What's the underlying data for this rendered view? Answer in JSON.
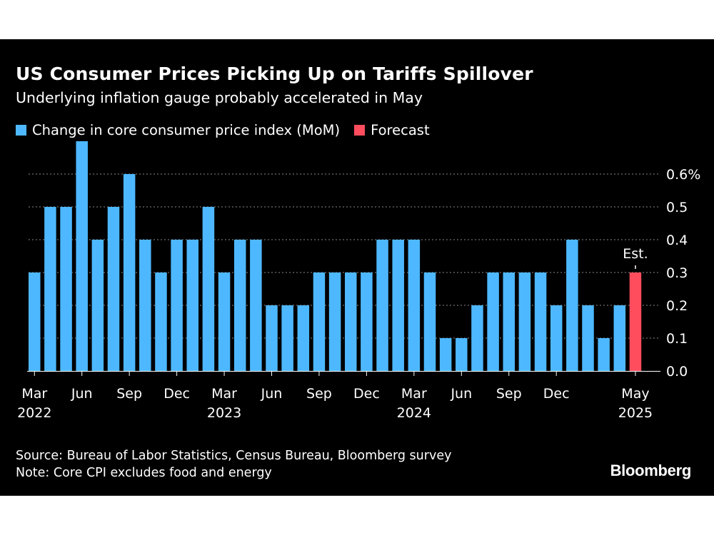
{
  "title": "US Consumer Prices Picking Up on Tariffs Spillover",
  "subtitle": "Underlying inflation gauge probably accelerated in May",
  "legend": [
    {
      "label": "Change in core consumer price index (MoM)",
      "color": "#4db8ff"
    },
    {
      "label": "Forecast",
      "color": "#ff4d5e"
    }
  ],
  "source": "Source: Bureau of Labor Statistics, Census Bureau, Bloomberg survey",
  "note": "Note: Core CPI excludes food and energy",
  "brand": "Bloomberg",
  "chart_data": {
    "type": "bar",
    "categories": [
      "2022-03",
      "2022-04",
      "2022-05",
      "2022-06",
      "2022-07",
      "2022-08",
      "2022-09",
      "2022-10",
      "2022-11",
      "2022-12",
      "2023-01",
      "2023-02",
      "2023-03",
      "2023-04",
      "2023-05",
      "2023-06",
      "2023-07",
      "2023-08",
      "2023-09",
      "2023-10",
      "2023-11",
      "2023-12",
      "2024-01",
      "2024-02",
      "2024-03",
      "2024-04",
      "2024-05",
      "2024-06",
      "2024-07",
      "2024-08",
      "2024-09",
      "2024-10",
      "2024-11",
      "2024-12",
      "2025-01",
      "2025-02",
      "2025-03",
      "2025-04",
      "2025-05"
    ],
    "values": [
      0.3,
      0.5,
      0.5,
      0.7,
      0.4,
      0.5,
      0.6,
      0.4,
      0.3,
      0.4,
      0.4,
      0.5,
      0.3,
      0.4,
      0.4,
      0.2,
      0.2,
      0.2,
      0.3,
      0.3,
      0.3,
      0.3,
      0.4,
      0.4,
      0.4,
      0.3,
      0.1,
      0.1,
      0.2,
      0.3,
      0.3,
      0.3,
      0.3,
      0.2,
      0.4,
      0.2,
      0.1,
      0.2,
      0.3
    ],
    "forecast_index": 38,
    "forecast_label": "Est.",
    "series_colors": {
      "actual": "#4db8ff",
      "forecast": "#ff4d5e"
    },
    "ylim": [
      0,
      0.7
    ],
    "yticks": [
      {
        "value": 0.0,
        "label": "0.0"
      },
      {
        "value": 0.1,
        "label": "0.1"
      },
      {
        "value": 0.2,
        "label": "0.2"
      },
      {
        "value": 0.3,
        "label": "0.3"
      },
      {
        "value": 0.4,
        "label": "0.4"
      },
      {
        "value": 0.5,
        "label": "0.5"
      },
      {
        "value": 0.6,
        "label": "0.6%"
      }
    ],
    "xticks": [
      {
        "index": 0,
        "month": "Mar",
        "year": "2022"
      },
      {
        "index": 3,
        "month": "Jun",
        "year": ""
      },
      {
        "index": 6,
        "month": "Sep",
        "year": ""
      },
      {
        "index": 9,
        "month": "Dec",
        "year": ""
      },
      {
        "index": 12,
        "month": "Mar",
        "year": "2023"
      },
      {
        "index": 15,
        "month": "Jun",
        "year": ""
      },
      {
        "index": 18,
        "month": "Sep",
        "year": ""
      },
      {
        "index": 21,
        "month": "Dec",
        "year": ""
      },
      {
        "index": 24,
        "month": "Mar",
        "year": "2024"
      },
      {
        "index": 27,
        "month": "Jun",
        "year": ""
      },
      {
        "index": 30,
        "month": "Sep",
        "year": ""
      },
      {
        "index": 33,
        "month": "Dec",
        "year": ""
      },
      {
        "index": 38,
        "month": "May",
        "year": "2025"
      }
    ],
    "grid": true,
    "legend_position": "top-left"
  }
}
